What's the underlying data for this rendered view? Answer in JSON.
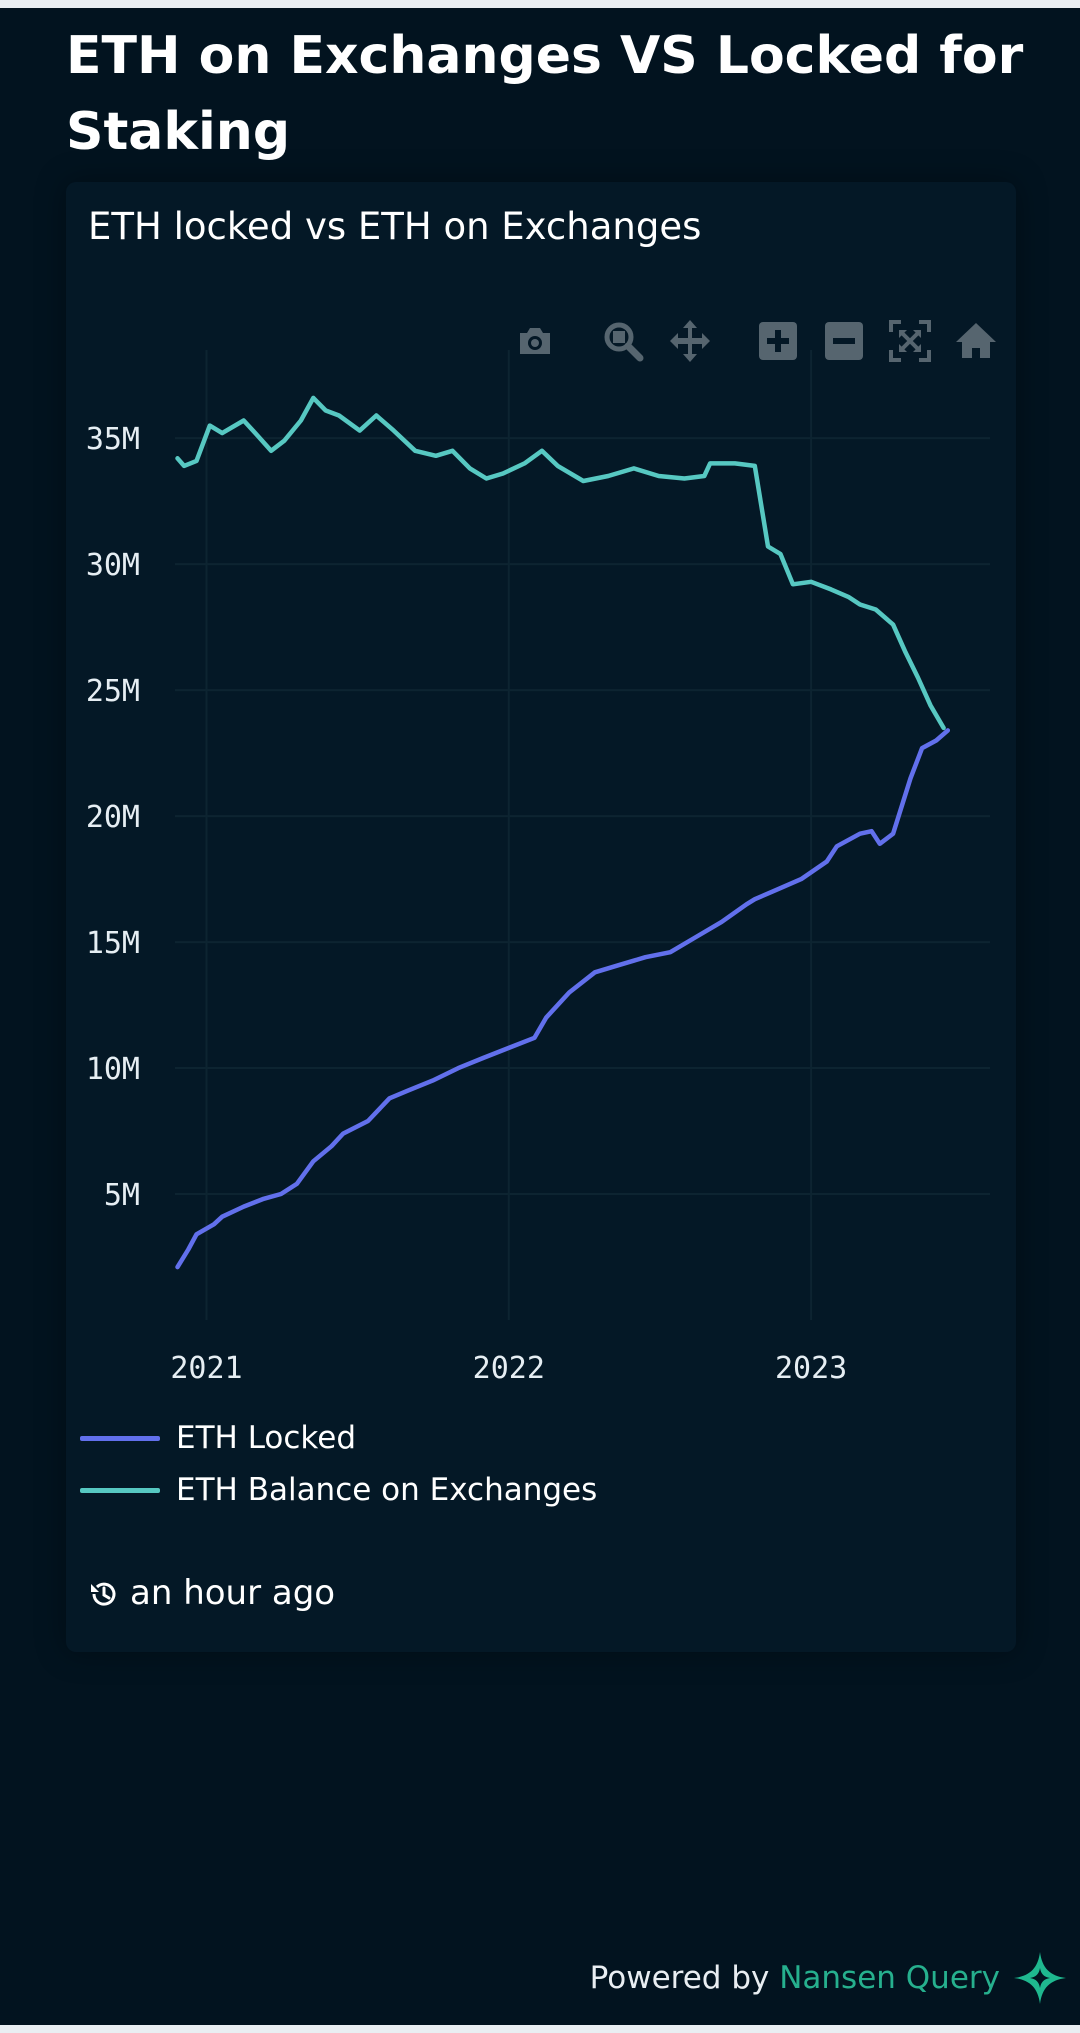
{
  "header": {
    "title": "ETH on Exchanges VS Locked for Staking"
  },
  "card": {
    "title": "ETH locked vs ETH on Exchanges",
    "updated": "an hour ago"
  },
  "toolbar": {
    "icons": [
      "camera-icon",
      "zoom-icon",
      "pan-icon",
      "zoom-in-icon",
      "zoom-out-icon",
      "autoscale-icon",
      "home-icon"
    ],
    "icon_color": "#56656f"
  },
  "footer": {
    "prefix": "Powered by",
    "brand": "Nansen Query",
    "brand_color": "#26b08e"
  },
  "chart_data": {
    "type": "line",
    "title": "",
    "xlabel": "",
    "ylabel": "",
    "x_ticks": [
      "2021",
      "2022",
      "2023"
    ],
    "y_ticks": [
      "5M",
      "10M",
      "15M",
      "20M",
      "25M",
      "30M",
      "35M"
    ],
    "y_tick_values": [
      5000000,
      10000000,
      15000000,
      20000000,
      25000000,
      30000000,
      35000000
    ],
    "xlim": [
      "2020-11-24",
      "2023-08-05"
    ],
    "ylim": [
      0,
      38500000
    ],
    "grid": true,
    "legend": "bottom",
    "series": [
      {
        "name": "ETH Locked",
        "color": "#6270ec",
        "points": [
          [
            "2020-11-27",
            2100000
          ],
          [
            "2020-12-10",
            2800000
          ],
          [
            "2020-12-20",
            3400000
          ],
          [
            "2021-01-10",
            3800000
          ],
          [
            "2021-01-20",
            4100000
          ],
          [
            "2021-02-15",
            4500000
          ],
          [
            "2021-03-10",
            4800000
          ],
          [
            "2021-04-01",
            5000000
          ],
          [
            "2021-04-20",
            5400000
          ],
          [
            "2021-05-10",
            6300000
          ],
          [
            "2021-06-01",
            6900000
          ],
          [
            "2021-06-15",
            7400000
          ],
          [
            "2021-07-15",
            7900000
          ],
          [
            "2021-08-10",
            8800000
          ],
          [
            "2021-09-01",
            9100000
          ],
          [
            "2021-10-01",
            9500000
          ],
          [
            "2021-11-01",
            10000000
          ],
          [
            "2021-12-01",
            10400000
          ],
          [
            "2022-01-01",
            10800000
          ],
          [
            "2022-02-01",
            11200000
          ],
          [
            "2022-02-15",
            12000000
          ],
          [
            "2022-03-15",
            13000000
          ],
          [
            "2022-04-15",
            13800000
          ],
          [
            "2022-05-15",
            14100000
          ],
          [
            "2022-06-15",
            14400000
          ],
          [
            "2022-07-15",
            14600000
          ],
          [
            "2022-08-15",
            15200000
          ],
          [
            "2022-09-15",
            15800000
          ],
          [
            "2022-10-15",
            16500000
          ],
          [
            "2022-10-25",
            16700000
          ],
          [
            "2022-11-15",
            17000000
          ],
          [
            "2022-12-20",
            17500000
          ],
          [
            "2023-01-20",
            18200000
          ],
          [
            "2023-02-01",
            18800000
          ],
          [
            "2023-03-01",
            19300000
          ],
          [
            "2023-03-15",
            19400000
          ],
          [
            "2023-03-25",
            18900000
          ],
          [
            "2023-04-10",
            19300000
          ],
          [
            "2023-05-01",
            21500000
          ],
          [
            "2023-05-15",
            22700000
          ],
          [
            "2023-06-01",
            23000000
          ],
          [
            "2023-06-15",
            23400000
          ]
        ]
      },
      {
        "name": "ETH Balance on Exchanges",
        "color": "#57c8c2",
        "points": [
          [
            "2020-11-27",
            34200000
          ],
          [
            "2020-12-05",
            33900000
          ],
          [
            "2020-12-20",
            34100000
          ],
          [
            "2021-01-05",
            35500000
          ],
          [
            "2021-01-20",
            35200000
          ],
          [
            "2021-02-15",
            35700000
          ],
          [
            "2021-03-01",
            35200000
          ],
          [
            "2021-03-20",
            34500000
          ],
          [
            "2021-04-05",
            34900000
          ],
          [
            "2021-04-25",
            35700000
          ],
          [
            "2021-05-10",
            36600000
          ],
          [
            "2021-05-25",
            36100000
          ],
          [
            "2021-06-10",
            35900000
          ],
          [
            "2021-07-05",
            35300000
          ],
          [
            "2021-07-25",
            35900000
          ],
          [
            "2021-08-15",
            35300000
          ],
          [
            "2021-09-10",
            34500000
          ],
          [
            "2021-10-05",
            34300000
          ],
          [
            "2021-10-25",
            34500000
          ],
          [
            "2021-11-15",
            33800000
          ],
          [
            "2021-12-05",
            33400000
          ],
          [
            "2021-12-25",
            33600000
          ],
          [
            "2022-01-20",
            34000000
          ],
          [
            "2022-02-10",
            34500000
          ],
          [
            "2022-03-01",
            33900000
          ],
          [
            "2022-04-01",
            33300000
          ],
          [
            "2022-05-01",
            33500000
          ],
          [
            "2022-06-01",
            33800000
          ],
          [
            "2022-07-01",
            33500000
          ],
          [
            "2022-08-01",
            33400000
          ],
          [
            "2022-08-25",
            33500000
          ],
          [
            "2022-09-01",
            34000000
          ],
          [
            "2022-10-01",
            34000000
          ],
          [
            "2022-10-25",
            33900000
          ],
          [
            "2022-11-10",
            30700000
          ],
          [
            "2022-11-25",
            30400000
          ],
          [
            "2022-12-10",
            29200000
          ],
          [
            "2023-01-01",
            29300000
          ],
          [
            "2023-01-25",
            29000000
          ],
          [
            "2023-02-15",
            28700000
          ],
          [
            "2023-03-01",
            28400000
          ],
          [
            "2023-03-20",
            28200000
          ],
          [
            "2023-04-10",
            27600000
          ],
          [
            "2023-04-25",
            26500000
          ],
          [
            "2023-05-10",
            25500000
          ],
          [
            "2023-05-25",
            24400000
          ],
          [
            "2023-06-10",
            23500000
          ]
        ]
      }
    ]
  }
}
